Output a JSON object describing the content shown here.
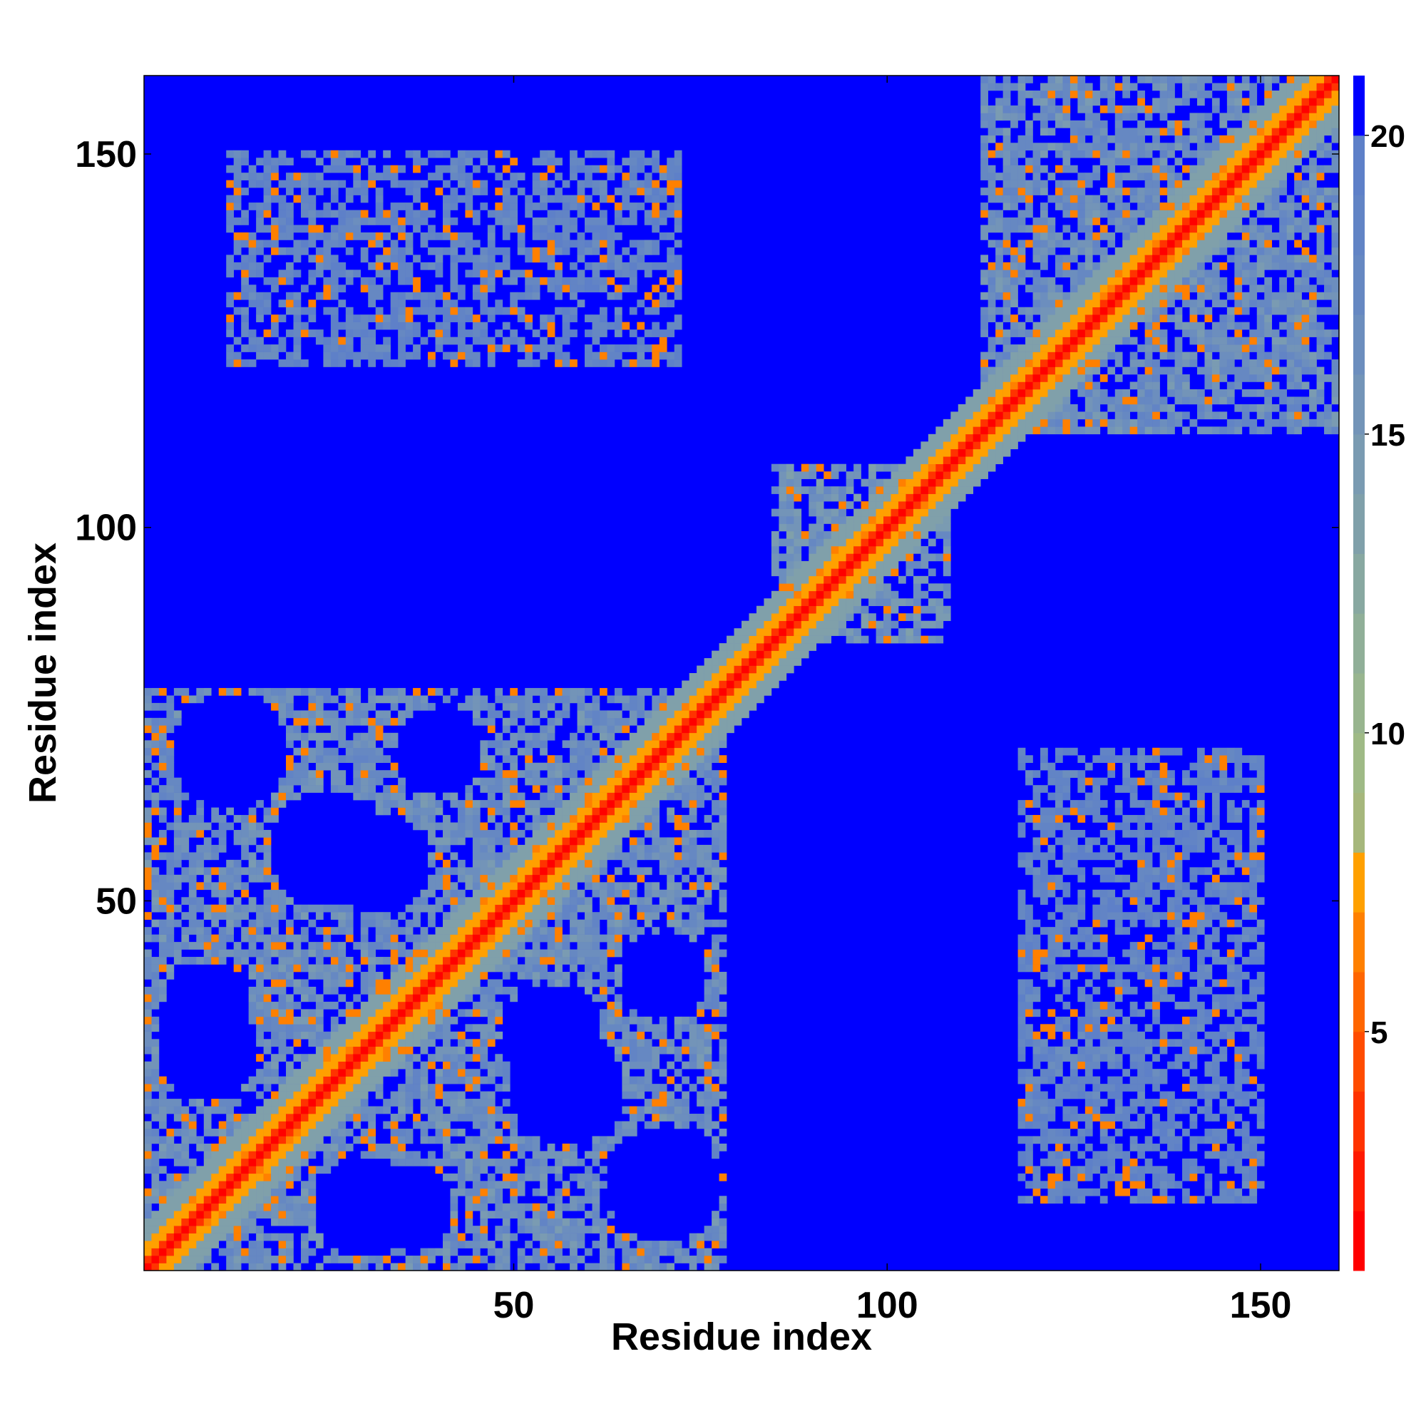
{
  "chart_data": {
    "type": "heatmap",
    "title": "",
    "xlabel": "Residue index",
    "ylabel": "Residue index",
    "n_residues": 160,
    "xlim": [
      1,
      160
    ],
    "ylim": [
      1,
      160
    ],
    "x_ticks": [
      50,
      100,
      150
    ],
    "y_ticks": [
      50,
      100,
      150
    ],
    "colorbar": {
      "ticks": [
        5,
        10,
        15,
        20
      ],
      "range": [
        1,
        21
      ],
      "levels": [
        {
          "upper": 2,
          "color": "#ff0000"
        },
        {
          "upper": 3,
          "color": "#ff1a00"
        },
        {
          "upper": 4,
          "color": "#ff3300"
        },
        {
          "upper": 5,
          "color": "#ff4c00"
        },
        {
          "upper": 6,
          "color": "#ff6600"
        },
        {
          "upper": 7,
          "color": "#ff8000"
        },
        {
          "upper": 8,
          "color": "#ffa000"
        },
        {
          "upper": 9,
          "color": "#a6b77c"
        },
        {
          "upper": 10,
          "color": "#9fba86"
        },
        {
          "upper": 11,
          "color": "#98b58f"
        },
        {
          "upper": 12,
          "color": "#90af98"
        },
        {
          "upper": 13,
          "color": "#88a8a1"
        },
        {
          "upper": 14,
          "color": "#80a0aa"
        },
        {
          "upper": 15,
          "color": "#7a9bb2"
        },
        {
          "upper": 16,
          "color": "#7394b8"
        },
        {
          "upper": 17,
          "color": "#6c8ebe"
        },
        {
          "upper": 18,
          "color": "#6688c2"
        },
        {
          "upper": 19,
          "color": "#6284c5"
        },
        {
          "upper": 20,
          "color": "#5e80c8"
        },
        {
          "upper": 21,
          "color": "#0000ff"
        }
      ]
    },
    "background_color": "#0000ff",
    "regions": [
      {
        "name": "diagonal",
        "from": 1,
        "to": 160,
        "half_width": 0,
        "value": 1
      },
      {
        "name": "diagonal-near",
        "from": 1,
        "to": 160,
        "half_width": 1,
        "value": 3
      },
      {
        "name": "diagonal-band",
        "from": 1,
        "to": 160,
        "half_width": 3,
        "value": 7
      },
      {
        "name": "diagonal-halo",
        "from": 1,
        "to": 160,
        "half_width": 6,
        "value": 13
      },
      {
        "name": "n-domain",
        "x": [
          1,
          78
        ],
        "y": [
          1,
          78
        ],
        "value": 16
      },
      {
        "name": "middle-domain",
        "x": [
          85,
          108
        ],
        "y": [
          85,
          108
        ],
        "value": 15
      },
      {
        "name": "c-domain",
        "x": [
          113,
          160
        ],
        "y": [
          113,
          160
        ],
        "value": 16
      },
      {
        "name": "contact-block-upper",
        "x": [
          12,
          72
        ],
        "y": [
          122,
          150
        ],
        "value": 18
      },
      {
        "name": "contact-block-lower",
        "x": [
          118,
          150
        ],
        "y": [
          10,
          70
        ],
        "value": 18
      }
    ],
    "holes": [
      {
        "cx": 25,
        "cy": 57,
        "r": 8
      },
      {
        "cx": 9,
        "cy": 36,
        "r": 6
      },
      {
        "cx": 30,
        "cy": 9,
        "r": 7
      },
      {
        "cx": 55,
        "cy": 32,
        "r": 7
      },
      {
        "cx": 70,
        "cy": 12,
        "r": 8
      },
      {
        "cx": 40,
        "cy": 70,
        "r": 6
      }
    ]
  }
}
